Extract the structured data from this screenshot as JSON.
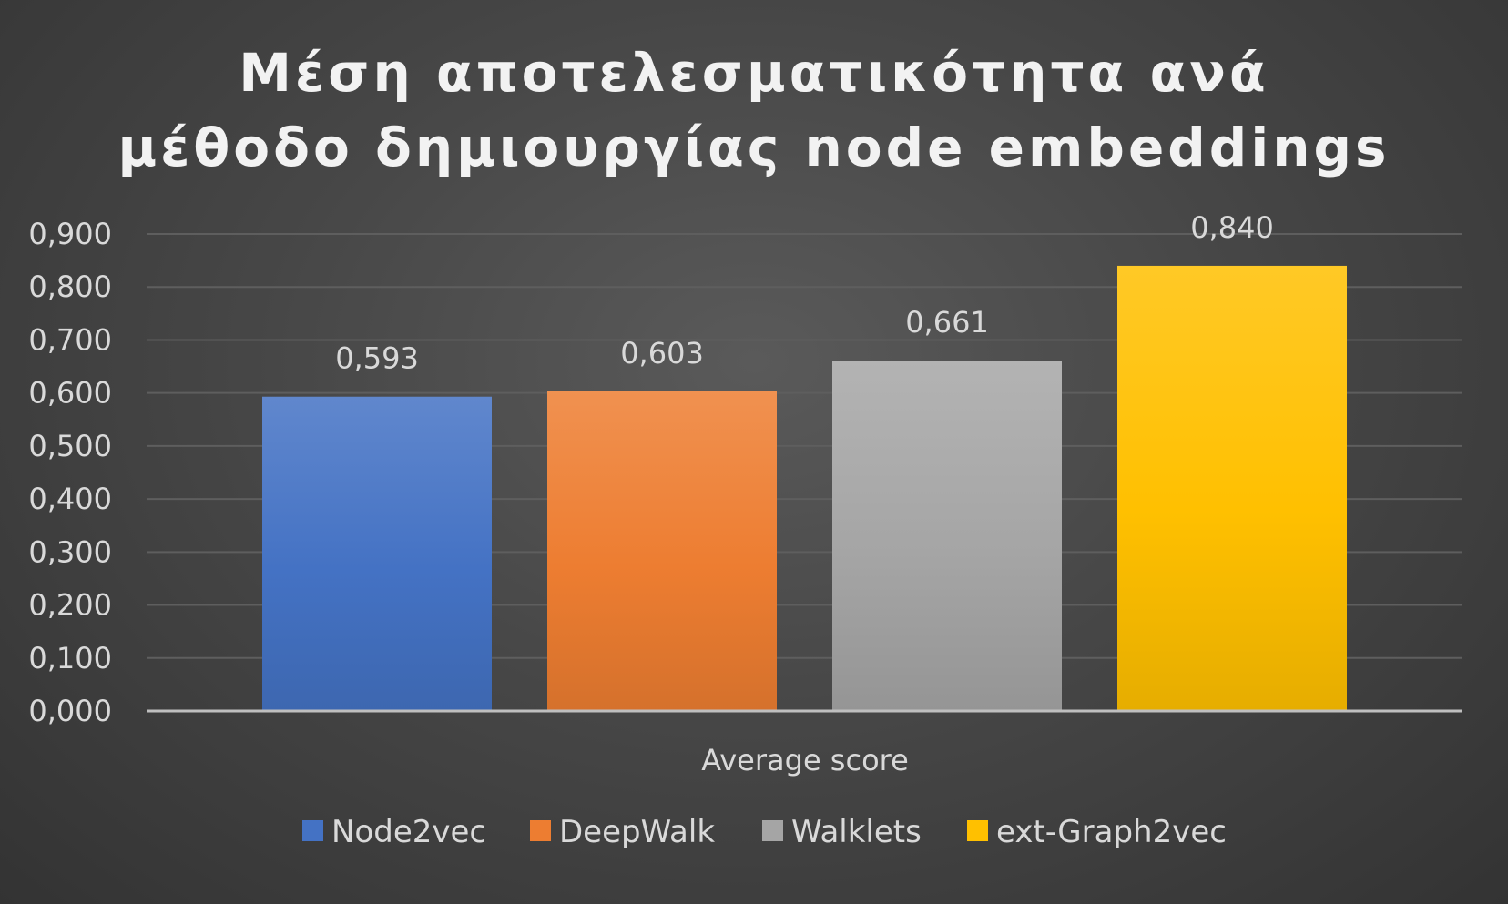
{
  "chart_data": {
    "type": "bar",
    "title_lines": [
      "Μέση αποτελεσματικότητα ανά",
      "μέθοδο δημιουργίας node embeddings"
    ],
    "categories": [
      "Average score"
    ],
    "series": [
      {
        "name": "Node2vec",
        "values": [
          0.593
        ],
        "label": "0,593",
        "color": "#4472c4"
      },
      {
        "name": "DeepWalk",
        "values": [
          0.603
        ],
        "label": "0,603",
        "color": "#ed7d31"
      },
      {
        "name": "Walklets",
        "values": [
          0.661
        ],
        "label": "0,661",
        "color": "#a5a5a5"
      },
      {
        "name": "ext-Graph2vec",
        "values": [
          0.84
        ],
        "label": "0,840",
        "color": "#ffc000"
      }
    ],
    "ylim": [
      0,
      0.9
    ],
    "yticks": [
      0,
      0.1,
      0.2,
      0.3,
      0.4,
      0.5,
      0.6,
      0.7,
      0.8,
      0.9
    ],
    "ytick_labels": [
      "0,000",
      "0,100",
      "0,200",
      "0,300",
      "0,400",
      "0,500",
      "0,600",
      "0,700",
      "0,800",
      "0,900"
    ],
    "xlabel": "",
    "ylabel": "",
    "grid": true,
    "legend_position": "bottom",
    "colors": {
      "background": "#404040",
      "gridline": "#5e5e5e",
      "axis_line": "#bfbfbf",
      "text": "#d9d9d9",
      "title": "#f2f2f2"
    }
  }
}
